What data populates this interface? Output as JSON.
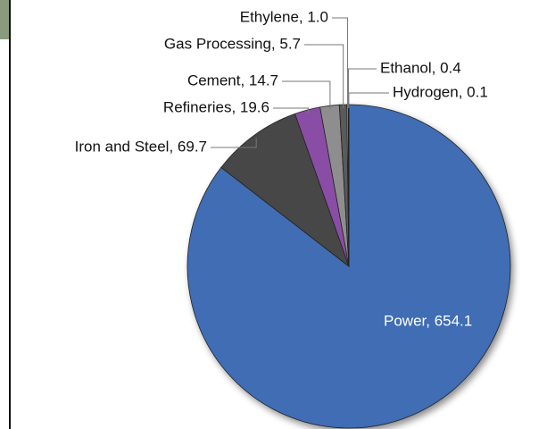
{
  "chart_data": {
    "type": "pie",
    "values": [
      654.1,
      69.7,
      19.6,
      14.7,
      5.7,
      1.0,
      0.4,
      0.1
    ],
    "value_labels": [
      "Power, 654.1",
      "Iron and Steel, 69.7",
      "Refineries, 19.6",
      "Cement, 14.7",
      "Gas Processing, 5.7",
      "Ethylene, 1.0",
      "Ethanol, 0.4",
      "Hydrogen, 0.1"
    ],
    "colors": [
      "#3f6db4",
      "#474747",
      "#8a4ea6",
      "#8e8e8e",
      "#5a5a5a",
      "#cfcfcf",
      "#e0dc1a",
      "#1f8c3c"
    ]
  }
}
